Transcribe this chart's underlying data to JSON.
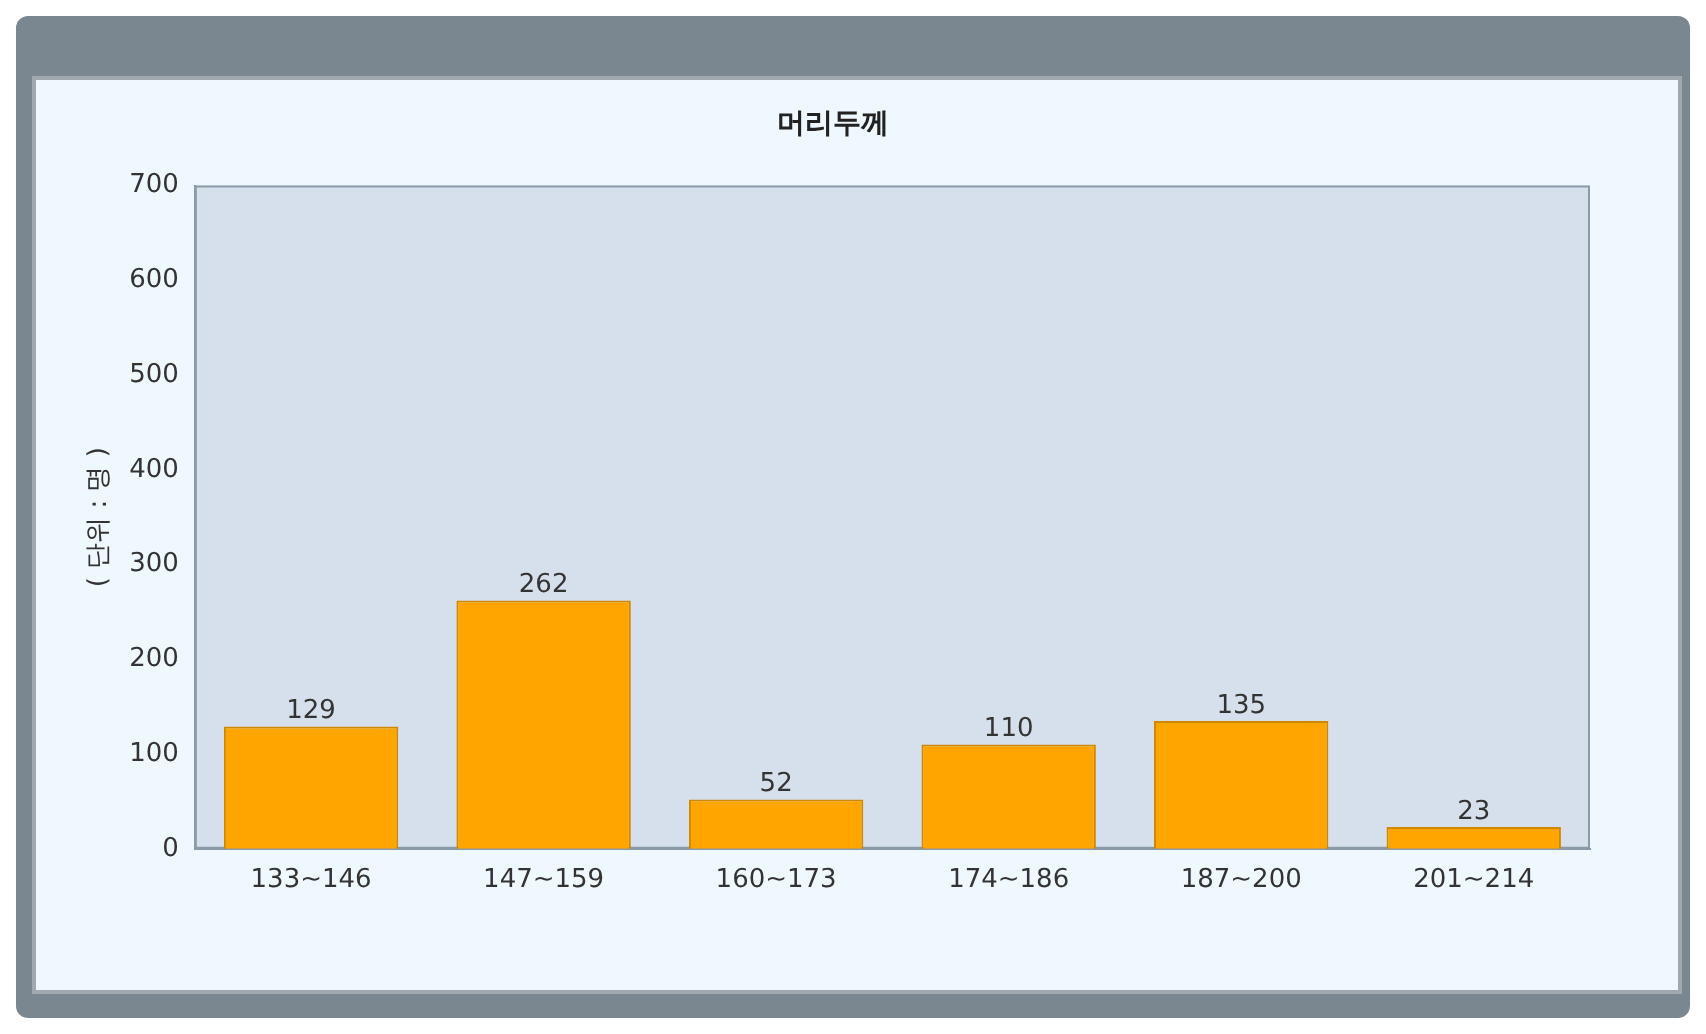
{
  "chart_data": {
    "type": "bar",
    "title": "머리두께",
    "ylabel": "( 단위 : 명 )",
    "categories": [
      "133~146",
      "147~159",
      "160~173",
      "174~186",
      "187~200",
      "201~214"
    ],
    "values": [
      129,
      262,
      52,
      110,
      135,
      23
    ],
    "color": "#ffa500",
    "ylim": [
      0,
      700
    ],
    "yticks": [
      0,
      100,
      200,
      300,
      400,
      500,
      600,
      700
    ],
    "grid": false,
    "data_labels": true
  }
}
